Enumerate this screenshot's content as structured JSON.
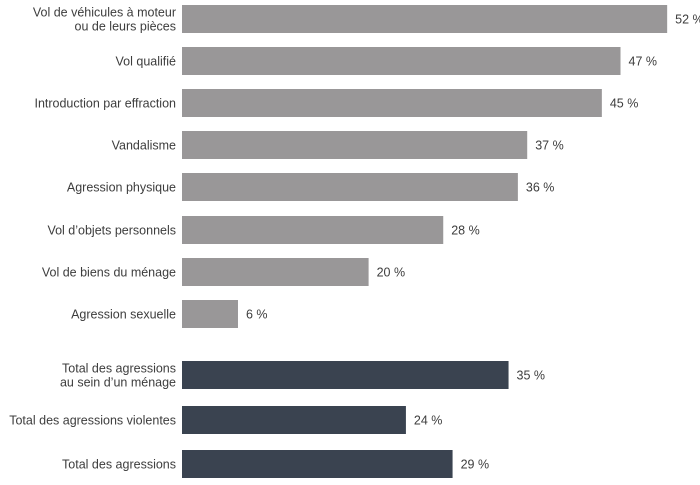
{
  "chart_data": {
    "type": "bar",
    "orientation": "horizontal",
    "categories": [
      [
        "Vol de véhicules à moteur",
        "ou de leurs pièces"
      ],
      [
        "Vol qualifié"
      ],
      [
        "Introduction par effraction"
      ],
      [
        "Vandalisme"
      ],
      [
        "Agression physique"
      ],
      [
        "Vol d’objets personnels"
      ],
      [
        "Vol de biens du ménage"
      ],
      [
        "Agression sexuelle"
      ],
      [
        "Total des agressions",
        "au sein d’un ménage"
      ],
      [
        "Total des agressions violentes"
      ],
      [
        "Total des agressions"
      ]
    ],
    "values": [
      52,
      47,
      45,
      37,
      36,
      28,
      20,
      6,
      35,
      24,
      29
    ],
    "value_labels": [
      "52 %",
      "47 %",
      "45 %",
      "37 %",
      "36 %",
      "28 %",
      "20 %",
      "6 %",
      "35 %",
      "24 %",
      "29 %"
    ],
    "groups": [
      "type",
      "type",
      "type",
      "type",
      "type",
      "type",
      "type",
      "type",
      "total",
      "total",
      "total"
    ],
    "colors": {
      "type": "#999798",
      "total": "#3a4350"
    },
    "xlim": [
      0,
      52
    ],
    "title": "",
    "xlabel": "",
    "ylabel": ""
  }
}
